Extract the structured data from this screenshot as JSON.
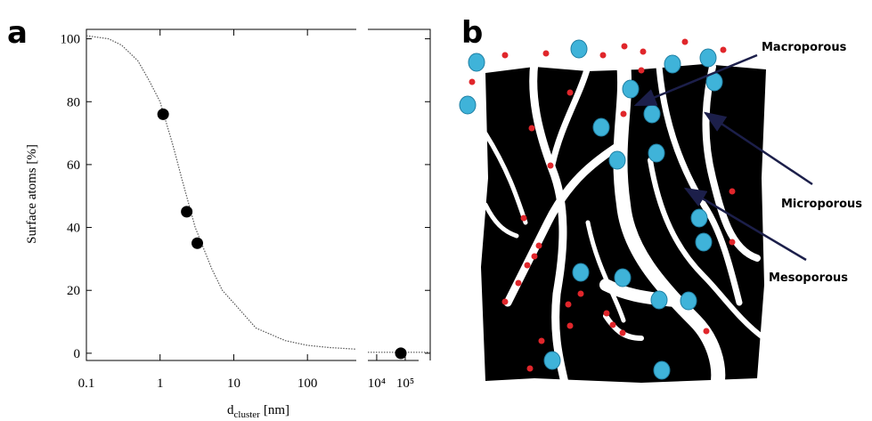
{
  "chart_data": {
    "type": "scatter",
    "panel_label": "a",
    "y_label": "Surface atoms [%]",
    "x_label": {
      "base": "d",
      "subscript": "cluster",
      "unit": "[nm]"
    },
    "log_x": true,
    "xlim": [
      0.1,
      460
    ],
    "x2lim": [
      4900,
      750000
    ],
    "xticks": [
      0.1,
      1,
      10,
      100
    ],
    "x2ticks": [
      {
        "value": 10000,
        "label": "10⁴"
      },
      {
        "value": 100000,
        "label": "10⁵"
      }
    ],
    "ylim": [
      -2.3,
      103
    ],
    "yticks": [
      0,
      20,
      40,
      60,
      80,
      100
    ],
    "series": [
      {
        "style": "line",
        "color": "#555555",
        "x": [
          0.1,
          0.2,
          0.3,
          0.5,
          0.7,
          1,
          1.5,
          2,
          3,
          5,
          7,
          10,
          20,
          50,
          100,
          200,
          460
        ],
        "values": [
          101,
          100,
          98,
          93,
          87,
          80,
          66,
          55,
          40,
          27,
          20,
          16,
          8,
          4,
          2.5,
          1.8,
          1.3
        ]
      },
      {
        "style": "line",
        "color": "#555555",
        "x": [
          4900,
          750000
        ],
        "values": [
          0.3,
          0.3
        ]
      },
      {
        "style": "markers",
        "color": "#000000",
        "x": [
          1.1,
          2.3,
          3.2,
          70000
        ],
        "values": [
          76,
          45,
          35,
          0
        ]
      }
    ]
  },
  "diagram": {
    "panel_label": "b",
    "labels": [
      "Macroporous",
      "Microporous",
      "Mesoporous"
    ]
  }
}
